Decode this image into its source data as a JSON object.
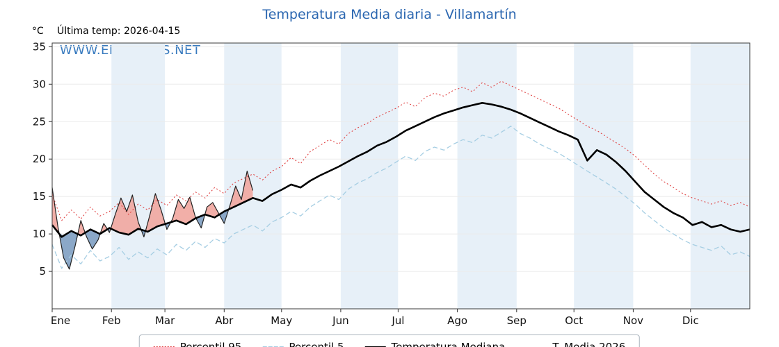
{
  "header": {
    "title": "Temperatura Media diaria - Villamartín",
    "y_unit": "°C",
    "last_temp": "Última temp: 2026-04-15",
    "watermark": "WWW.EMBALSES.NET"
  },
  "colors": {
    "title": "#2a66b0",
    "watermark": "#2f74bc",
    "band": "#e7f0f8",
    "fill_above": "#f1a69e",
    "fill_below": "#7e9fc2",
    "grid": "#ebebeb",
    "axis": "#3a3a3a"
  },
  "chart_data": {
    "type": "line",
    "title": "Temperatura Media diaria - Villamartín",
    "xlabel": "",
    "ylabel": "°C",
    "ylim": [
      0,
      35.5
    ],
    "yticks": [
      5,
      10,
      15,
      20,
      25,
      30,
      35
    ],
    "x_month_labels": [
      "Ene",
      "Feb",
      "Mar",
      "Abr",
      "May",
      "Jun",
      "Jul",
      "Ago",
      "Sep",
      "Oct",
      "Nov",
      "Dic"
    ],
    "x_month_start_days": [
      0,
      31,
      59,
      90,
      120,
      151,
      181,
      212,
      243,
      273,
      304,
      334
    ],
    "days_in_year": 365,
    "legend_position": "bottom-center",
    "background_bands": "alternate-months-light-blue",
    "annotation": "Última temp: 2026-04-15",
    "series": [
      {
        "key": "p95",
        "name": "Percentil 95",
        "style": "dotted",
        "color": "#e04343",
        "width": 1.1,
        "x_unit": "day_of_year",
        "x_start": 0,
        "x_step": 5,
        "values": [
          15.3,
          11.8,
          13.2,
          12.0,
          13.6,
          12.4,
          13.0,
          14.2,
          12.6,
          14.0,
          13.2,
          14.6,
          13.8,
          15.2,
          14.4,
          15.6,
          14.8,
          16.2,
          15.4,
          16.8,
          17.4,
          18.0,
          17.2,
          18.4,
          19.0,
          20.2,
          19.4,
          21.0,
          21.8,
          22.6,
          22.0,
          23.4,
          24.2,
          24.8,
          25.6,
          26.2,
          26.8,
          27.6,
          27.0,
          28.2,
          28.8,
          28.4,
          29.2,
          29.6,
          29.0,
          30.2,
          29.6,
          30.4,
          29.8,
          29.2,
          28.6,
          28.0,
          27.4,
          26.8,
          26.0,
          25.2,
          24.4,
          23.8,
          23.0,
          22.2,
          21.4,
          20.4,
          19.2,
          18.0,
          17.0,
          16.2,
          15.4,
          14.8,
          14.4,
          14.0,
          14.4,
          13.8,
          14.2,
          13.6
        ]
      },
      {
        "key": "p5",
        "name": "Percentil 5",
        "style": "dashed",
        "color": "#a6cee3",
        "width": 1.3,
        "x_unit": "day_of_year",
        "x_start": 0,
        "x_step": 5,
        "values": [
          8.6,
          5.4,
          7.2,
          6.0,
          7.8,
          6.4,
          7.0,
          8.2,
          6.6,
          7.6,
          6.8,
          8.0,
          7.2,
          8.6,
          7.8,
          9.0,
          8.2,
          9.4,
          8.8,
          10.0,
          10.6,
          11.2,
          10.4,
          11.6,
          12.2,
          13.0,
          12.4,
          13.6,
          14.4,
          15.2,
          14.6,
          16.0,
          16.8,
          17.4,
          18.2,
          18.8,
          19.6,
          20.4,
          19.8,
          21.0,
          21.6,
          21.2,
          22.0,
          22.6,
          22.2,
          23.2,
          22.8,
          23.6,
          24.4,
          23.4,
          22.8,
          22.0,
          21.4,
          20.8,
          20.0,
          19.2,
          18.4,
          17.6,
          16.8,
          16.0,
          15.0,
          14.0,
          12.8,
          11.8,
          10.8,
          10.0,
          9.2,
          8.6,
          8.2,
          7.8,
          8.4,
          7.2,
          7.6,
          7.0
        ]
      },
      {
        "key": "median",
        "name": "Temperatura Mediana",
        "style": "solid",
        "color": "#000000",
        "width": 2.6,
        "x_unit": "day_of_year",
        "x_start": 0,
        "x_step": 5,
        "values": [
          11.2,
          9.6,
          10.4,
          9.8,
          10.6,
          10.0,
          10.8,
          10.2,
          9.9,
          10.7,
          10.3,
          11.0,
          11.4,
          11.8,
          11.3,
          12.1,
          12.6,
          12.2,
          13.0,
          13.6,
          14.2,
          14.8,
          14.4,
          15.3,
          15.9,
          16.6,
          16.2,
          17.1,
          17.8,
          18.4,
          19.0,
          19.7,
          20.4,
          21.0,
          21.8,
          22.3,
          23.0,
          23.8,
          24.4,
          25.0,
          25.6,
          26.1,
          26.5,
          26.9,
          27.2,
          27.5,
          27.3,
          27.0,
          26.6,
          26.1,
          25.5,
          24.9,
          24.3,
          23.7,
          23.2,
          22.6,
          19.8,
          21.2,
          20.6,
          19.6,
          18.4,
          17.0,
          15.6,
          14.6,
          13.6,
          12.8,
          12.2,
          11.2,
          11.6,
          10.9,
          11.2,
          10.6,
          10.3,
          10.6
        ]
      },
      {
        "key": "t2026",
        "name": "T. Media 2026",
        "style": "solid",
        "color": "#222222",
        "width": 1.2,
        "x_unit": "day_of_year",
        "x_start": 0,
        "x_step": 3,
        "values": [
          16.2,
          11.0,
          6.8,
          5.3,
          8.4,
          11.8,
          9.6,
          8.0,
          9.2,
          11.4,
          10.2,
          12.6,
          14.8,
          13.0,
          15.2,
          11.6,
          9.6,
          12.4,
          15.4,
          13.2,
          10.6,
          12.0,
          14.6,
          13.4,
          14.9,
          12.2,
          10.8,
          13.6,
          14.2,
          12.8,
          11.4,
          13.8,
          16.4,
          14.6,
          18.4,
          15.8
        ]
      }
    ],
    "fills": [
      {
        "name": "above-median",
        "between": [
          "t2026",
          "median"
        ],
        "condition": "t2026 > median",
        "color": "#f1a69e"
      },
      {
        "name": "below-median",
        "between": [
          "t2026",
          "median"
        ],
        "condition": "t2026 < median",
        "color": "#7e9fc2"
      }
    ]
  },
  "legend": {
    "items": [
      {
        "label": "Percentil 95"
      },
      {
        "label": "Percentil 5"
      },
      {
        "label": "Temperatura Mediana"
      },
      {
        "label": "T. Media 2026"
      }
    ]
  }
}
